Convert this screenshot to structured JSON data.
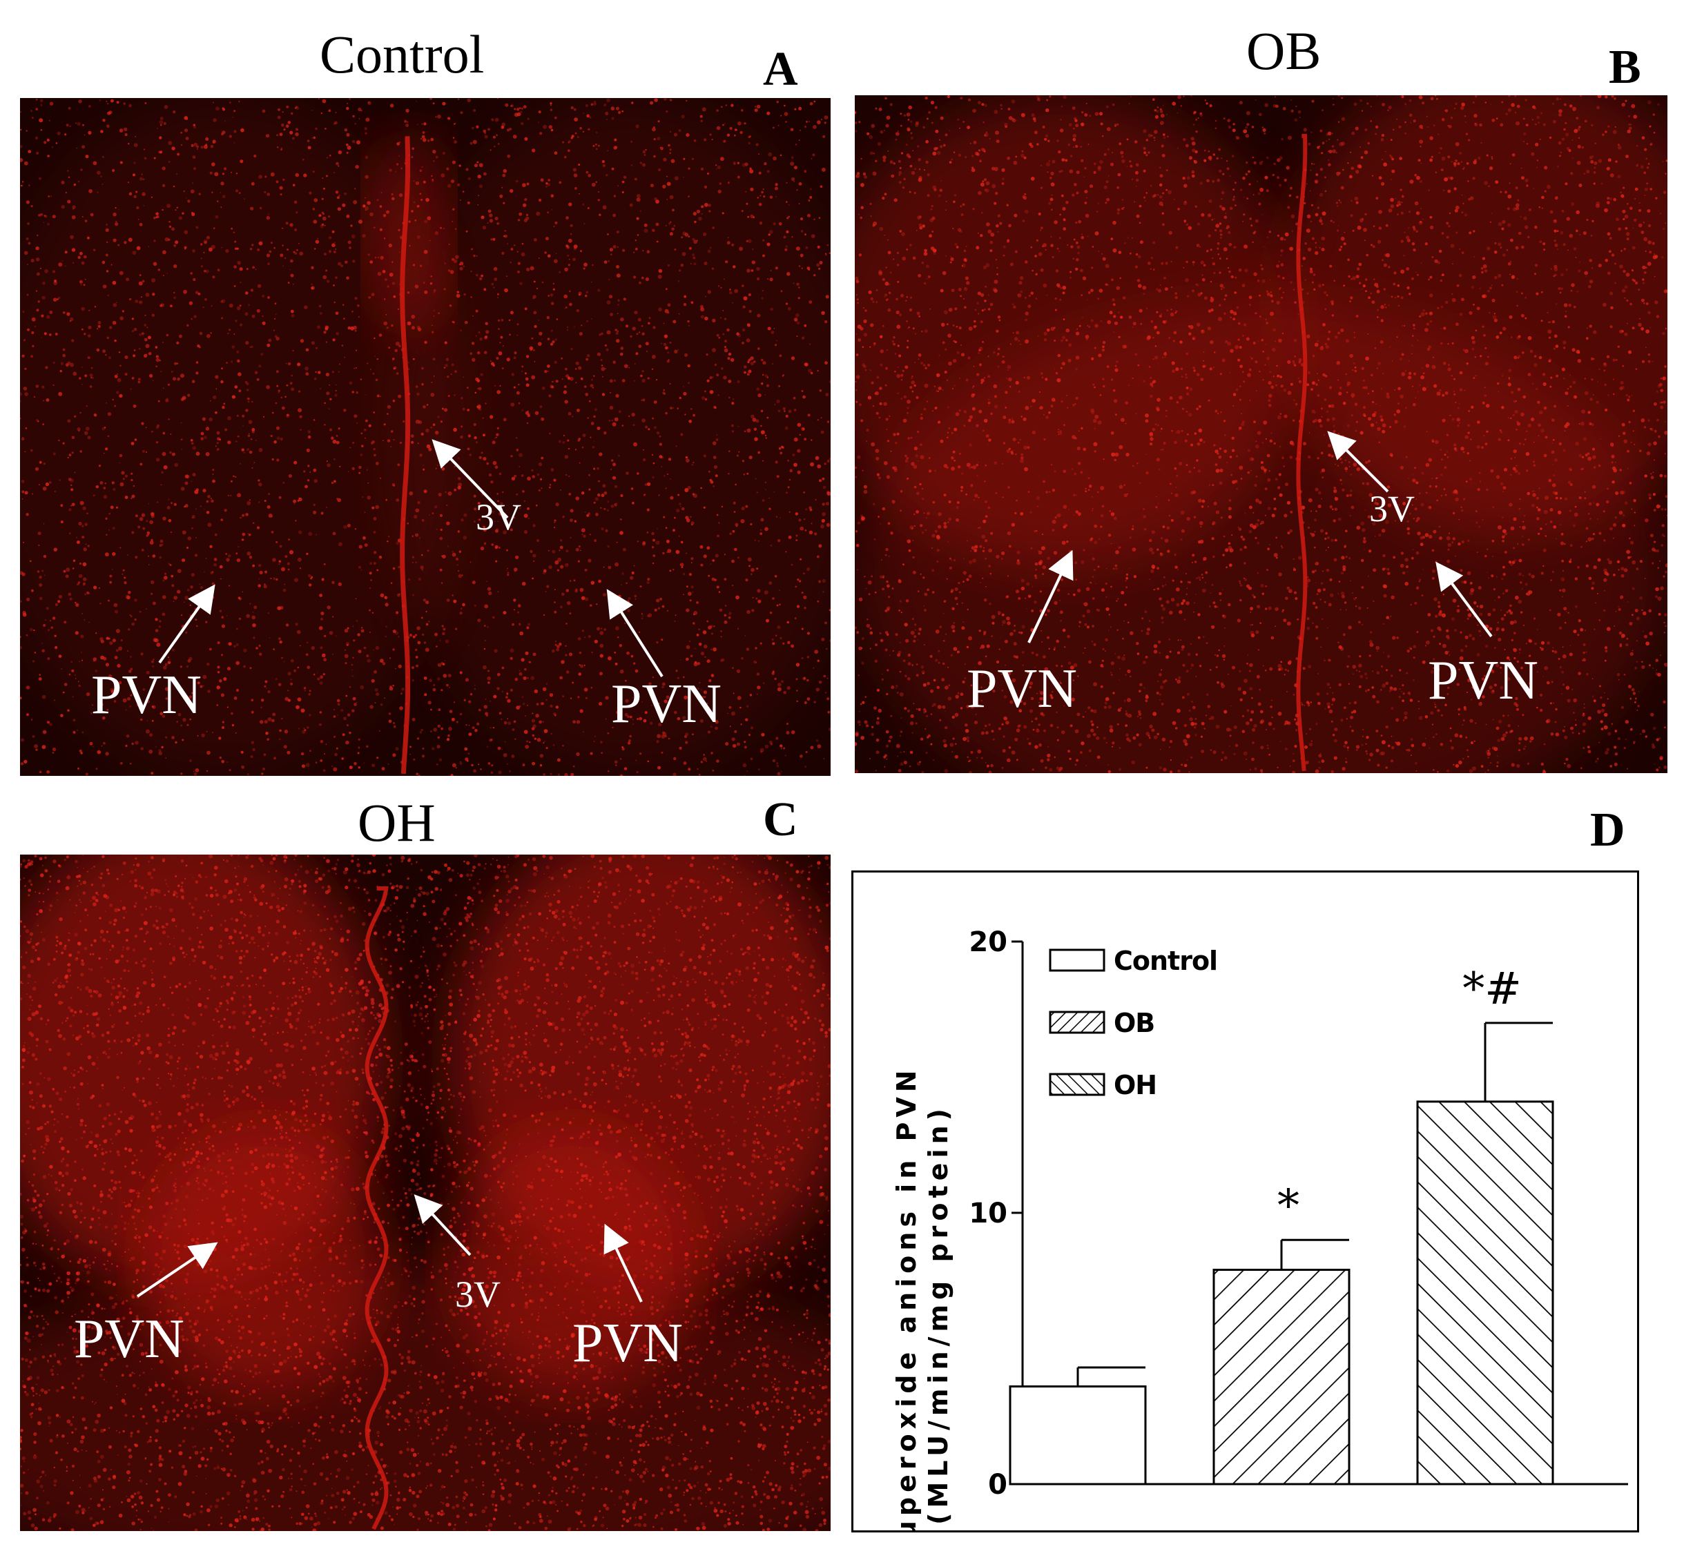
{
  "panels": {
    "a": {
      "title": "Control",
      "letter": "A",
      "labels": {
        "pvn_left": "PVN",
        "pvn_right": "PVN",
        "v3": "3V"
      }
    },
    "b": {
      "title": "OB",
      "letter": "B",
      "labels": {
        "pvn_left": "PVN",
        "pvn_right": "PVN",
        "v3": "3V"
      }
    },
    "c": {
      "title": "OH",
      "letter": "C",
      "labels": {
        "pvn_left": "PVN",
        "pvn_right": "PVN",
        "v3": "3V"
      }
    },
    "d": {
      "letter": "D"
    }
  },
  "colors": {
    "tissue_dark": "#1c0302",
    "tissue_red": "#b81208",
    "annotation_white": "#ffffff"
  },
  "chart_data": {
    "type": "bar",
    "categories": [
      "Control",
      "OB",
      "OH"
    ],
    "values": [
      3.6,
      7.9,
      14.1
    ],
    "errors": [
      0.7,
      1.1,
      2.9
    ],
    "significance": [
      "",
      "*",
      "*#"
    ],
    "patterns": [
      "none",
      "hatch-forward",
      "hatch-backward"
    ],
    "legend": [
      "Control",
      "OB",
      "OH"
    ],
    "legend_position": "top-left",
    "ylabel_line1": "Superoxide anions in PVN",
    "ylabel_line2": "(MLU/min/mg protein)",
    "ylim": [
      0,
      20
    ],
    "yticks": [
      "0",
      "10",
      "20"
    ],
    "grid": false
  }
}
